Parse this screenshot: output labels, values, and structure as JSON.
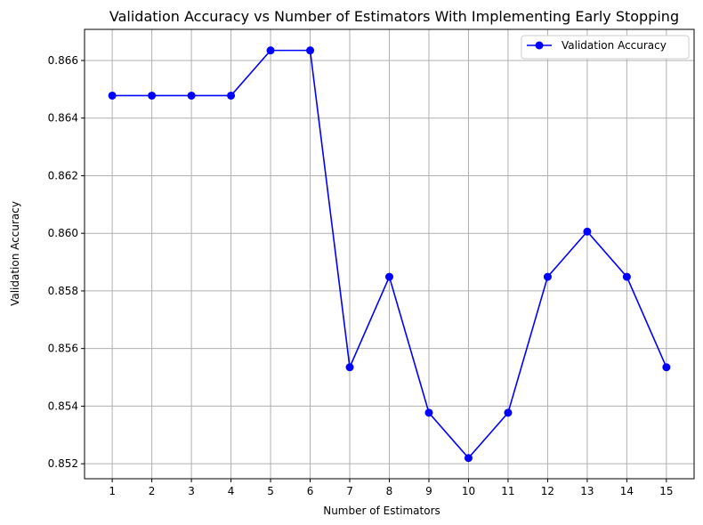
{
  "chart_data": {
    "type": "line",
    "title": "Validation Accuracy vs Number of Estimators With Implementing Early Stopping",
    "xlabel": "Number of Estimators",
    "ylabel": "Validation Accuracy",
    "x": [
      1,
      2,
      3,
      4,
      5,
      6,
      7,
      8,
      9,
      10,
      11,
      12,
      13,
      14,
      15
    ],
    "xticks": [
      "1",
      "2",
      "3",
      "4",
      "5",
      "6",
      "7",
      "8",
      "9",
      "10",
      "11",
      "12",
      "13",
      "14",
      "15"
    ],
    "yticks": [
      "0.852",
      "0.854",
      "0.856",
      "0.858",
      "0.860",
      "0.862",
      "0.864",
      "0.866"
    ],
    "xlim": [
      0.3,
      15.7
    ],
    "ylim": [
      0.85148,
      0.86708
    ],
    "grid": true,
    "legend_position": "top-right",
    "series": [
      {
        "name": "Validation Accuracy",
        "color": "#0000ff",
        "marker": "circle",
        "values": [
          0.86478,
          0.86478,
          0.86478,
          0.86478,
          0.86635,
          0.86635,
          0.85535,
          0.85849,
          0.85377,
          0.8522,
          0.85377,
          0.85849,
          0.86006,
          0.85849,
          0.85535
        ]
      }
    ]
  }
}
